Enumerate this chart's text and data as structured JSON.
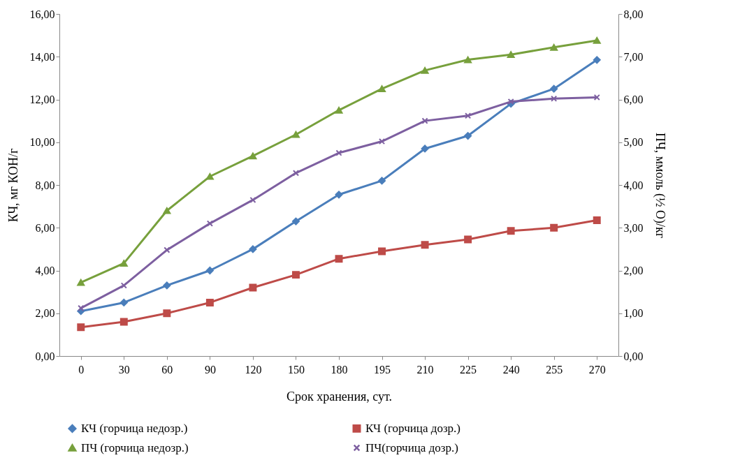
{
  "chart_data": {
    "type": "line",
    "xlabel": "Срок хранения, сут.",
    "ylabel": "КЧ, мг КОН/г",
    "y2label": "ПЧ, ммоль (½ O)/кг",
    "categories": [
      "0",
      "30",
      "60",
      "90",
      "120",
      "150",
      "180",
      "195",
      "210",
      "225",
      "240",
      "255",
      "270"
    ],
    "ylim": [
      0,
      16
    ],
    "yticks": [
      {
        "value": 0,
        "label": "0,00"
      },
      {
        "value": 2,
        "label": "2,00"
      },
      {
        "value": 4,
        "label": "4,00"
      },
      {
        "value": 6,
        "label": "6,00"
      },
      {
        "value": 8,
        "label": "8,00"
      },
      {
        "value": 10,
        "label": "10,00"
      },
      {
        "value": 12,
        "label": "12,00"
      },
      {
        "value": 14,
        "label": "14,00"
      },
      {
        "value": 16,
        "label": "16,00"
      }
    ],
    "y2lim": [
      0,
      8
    ],
    "y2ticks": [
      {
        "value": 0,
        "label": "0,00"
      },
      {
        "value": 1,
        "label": "1,00"
      },
      {
        "value": 2,
        "label": "2,00"
      },
      {
        "value": 3,
        "label": "3,00"
      },
      {
        "value": 4,
        "label": "4,00"
      },
      {
        "value": 5,
        "label": "5,00"
      },
      {
        "value": 6,
        "label": "6,00"
      },
      {
        "value": 7,
        "label": "7,00"
      },
      {
        "value": 8,
        "label": "8,00"
      }
    ],
    "legend": "bottom",
    "series": [
      {
        "name": "КЧ (горчица недозр.)",
        "color": "#4a7ebb",
        "marker": "diamond",
        "values": [
          2.1,
          2.5,
          3.3,
          4.0,
          5.0,
          6.3,
          7.55,
          8.2,
          9.7,
          10.3,
          11.8,
          12.5,
          13.85
        ]
      },
      {
        "name": "КЧ (горчица дозр.)",
        "color": "#be4b48",
        "marker": "square",
        "values": [
          1.35,
          1.6,
          2.0,
          2.5,
          3.2,
          3.8,
          4.55,
          4.9,
          5.2,
          5.45,
          5.85,
          6.0,
          6.35
        ]
      },
      {
        "name": "ПЧ (горчица недозр.)",
        "color": "#77a03c",
        "marker": "triangle",
        "axis": "y2",
        "values": [
          1.72,
          2.17,
          3.4,
          4.2,
          4.68,
          5.18,
          5.75,
          6.25,
          6.68,
          6.93,
          7.05,
          7.22,
          7.38
        ]
      },
      {
        "name": "ПЧ(горчица дозр.)",
        "color": "#7d5fa0",
        "marker": "cross",
        "axis": "y2",
        "values": [
          1.12,
          1.65,
          2.48,
          3.1,
          3.65,
          4.28,
          4.75,
          5.02,
          5.5,
          5.62,
          5.95,
          6.02,
          6.05
        ]
      }
    ]
  }
}
